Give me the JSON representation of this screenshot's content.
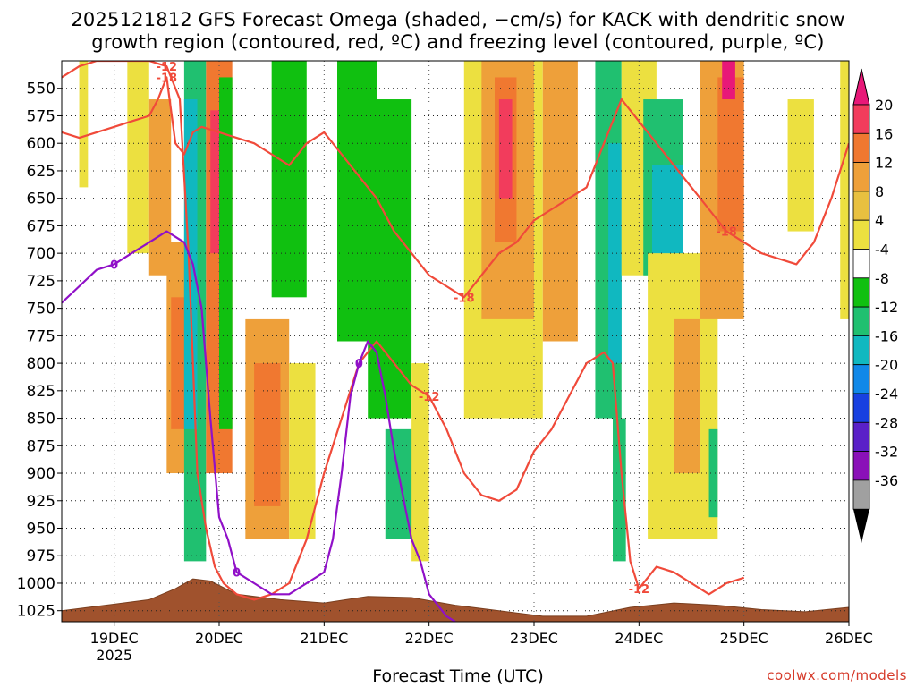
{
  "title": {
    "line1": "2025121812 GFS Forecast Omega (shaded, −cm/s) for KACK with dendritic snow",
    "line2": "growth region (contoured, red, ºC) and freezing level (contoured, purple, ºC)"
  },
  "credit": "coolwx.com/models",
  "chart_data": {
    "type": "time-height cross-section",
    "xlabel": "Forecast Time (UTC)",
    "x_ticks": [
      {
        "label": "19DEC",
        "sublabel": "2025",
        "hour": 12
      },
      {
        "label": "20DEC",
        "hour": 36
      },
      {
        "label": "21DEC",
        "hour": 60
      },
      {
        "label": "22DEC",
        "hour": 84
      },
      {
        "label": "23DEC",
        "hour": 108
      },
      {
        "label": "24DEC",
        "hour": 132
      },
      {
        "label": "25DEC",
        "hour": 156
      },
      {
        "label": "26DEC",
        "hour": 180
      }
    ],
    "x_range_hours": [
      0,
      180
    ],
    "y_levels_hpa": [
      550,
      575,
      600,
      625,
      650,
      675,
      700,
      725,
      750,
      775,
      800,
      825,
      850,
      875,
      900,
      925,
      950,
      975,
      1000,
      1025
    ],
    "y_range_hpa": [
      525,
      1035
    ],
    "y_labels": [
      "550",
      "575",
      "600",
      "625",
      "650",
      "675",
      "700",
      "725",
      "750",
      "775",
      "800",
      "825",
      "850",
      "875",
      "900",
      "925",
      "950",
      "975",
      "1000",
      "1025"
    ],
    "colorbar": {
      "labels": [
        "20",
        "16",
        "12",
        "8",
        "4",
        "-4",
        "-8",
        "-12",
        "-16",
        "-20",
        "-24",
        "-28",
        "-32",
        "-36"
      ],
      "colors": [
        "#f23c5c",
        "#f07830",
        "#eea03a",
        "#e8c040",
        "#ece040",
        "#ffffff",
        "#10c010",
        "#20c070",
        "#10b8c0",
        "#1088e8",
        "#1840e0",
        "#5a20c8",
        "#8a10b8",
        "#a0a0a0"
      ],
      "top_arrow_color": "#e81878",
      "bottom_arrow_color": "#000000"
    },
    "omega_regions": [
      {
        "x": [
          4,
          6
        ],
        "p": [
          525,
          640
        ],
        "v": 5
      },
      {
        "x": [
          15,
          20
        ],
        "p": [
          525,
          700
        ],
        "v": 6
      },
      {
        "x": [
          20,
          25
        ],
        "p": [
          560,
          720
        ],
        "v": 10
      },
      {
        "x": [
          24,
          30
        ],
        "p": [
          690,
          900
        ],
        "v": 8
      },
      {
        "x": [
          25,
          29
        ],
        "p": [
          740,
          860
        ],
        "v": 14
      },
      {
        "x": [
          28,
          33
        ],
        "p": [
          525,
          980
        ],
        "v": -10
      },
      {
        "x": [
          28,
          31
        ],
        "p": [
          560,
          860
        ],
        "v": -14
      },
      {
        "x": [
          33,
          39
        ],
        "p": [
          525,
          900
        ],
        "v": 12
      },
      {
        "x": [
          34,
          37
        ],
        "p": [
          570,
          700
        ],
        "v": 18
      },
      {
        "x": [
          36,
          39
        ],
        "p": [
          540,
          860
        ],
        "v": -6
      },
      {
        "x": [
          42,
          52
        ],
        "p": [
          760,
          960
        ],
        "v": 8
      },
      {
        "x": [
          44,
          50
        ],
        "p": [
          800,
          930
        ],
        "v": 13
      },
      {
        "x": [
          48,
          56
        ],
        "p": [
          525,
          740
        ],
        "v": -7
      },
      {
        "x": [
          52,
          58
        ],
        "p": [
          800,
          960
        ],
        "v": 5
      },
      {
        "x": [
          63,
          72
        ],
        "p": [
          525,
          780
        ],
        "v": -7
      },
      {
        "x": [
          70,
          80
        ],
        "p": [
          560,
          850
        ],
        "v": -6
      },
      {
        "x": [
          74,
          82
        ],
        "p": [
          860,
          960
        ],
        "v": -8
      },
      {
        "x": [
          80,
          84
        ],
        "p": [
          800,
          980
        ],
        "v": 5
      },
      {
        "x": [
          92,
          110
        ],
        "p": [
          525,
          850
        ],
        "v": 6
      },
      {
        "x": [
          96,
          108
        ],
        "p": [
          525,
          760
        ],
        "v": 10
      },
      {
        "x": [
          99,
          104
        ],
        "p": [
          540,
          690
        ],
        "v": 15
      },
      {
        "x": [
          100,
          103
        ],
        "p": [
          560,
          650
        ],
        "v": 19
      },
      {
        "x": [
          110,
          118
        ],
        "p": [
          525,
          780
        ],
        "v": 8
      },
      {
        "x": [
          122,
          128
        ],
        "p": [
          525,
          850
        ],
        "v": -8
      },
      {
        "x": [
          125,
          128
        ],
        "p": [
          600,
          800
        ],
        "v": -13
      },
      {
        "x": [
          126,
          129
        ],
        "p": [
          850,
          980
        ],
        "v": -9
      },
      {
        "x": [
          128,
          136
        ],
        "p": [
          525,
          720
        ],
        "v": 5
      },
      {
        "x": [
          133,
          142
        ],
        "p": [
          560,
          720
        ],
        "v": -9
      },
      {
        "x": [
          135,
          142
        ],
        "p": [
          620,
          780
        ],
        "v": -13
      },
      {
        "x": [
          134,
          150
        ],
        "p": [
          700,
          960
        ],
        "v": 6
      },
      {
        "x": [
          140,
          146
        ],
        "p": [
          760,
          900
        ],
        "v": 10
      },
      {
        "x": [
          146,
          156
        ],
        "p": [
          525,
          760
        ],
        "v": 8
      },
      {
        "x": [
          150,
          156
        ],
        "p": [
          540,
          680
        ],
        "v": 12
      },
      {
        "x": [
          151,
          154
        ],
        "p": [
          525,
          560
        ],
        "v": 20
      },
      {
        "x": [
          148,
          150
        ],
        "p": [
          860,
          940
        ],
        "v": -9
      },
      {
        "x": [
          166,
          172
        ],
        "p": [
          560,
          680
        ],
        "v": 5
      },
      {
        "x": [
          178,
          180
        ],
        "p": [
          525,
          760
        ],
        "v": 5
      }
    ],
    "dgz_isotherms": [
      {
        "label": "-12",
        "hours": [
          0,
          4,
          8,
          12,
          16,
          20,
          24,
          27,
          29,
          31,
          33,
          35,
          37,
          40,
          44,
          48,
          52,
          56,
          60,
          64,
          68,
          72,
          76,
          80,
          84,
          88,
          92,
          96,
          100,
          104,
          108,
          112,
          116,
          120,
          124,
          126,
          128,
          130,
          132,
          136,
          140,
          144,
          148,
          152,
          156
        ],
        "p": [
          540,
          530,
          525,
          525,
          525,
          525,
          530,
          560,
          700,
          900,
          950,
          985,
          1000,
          1010,
          1015,
          1010,
          1000,
          960,
          900,
          850,
          800,
          780,
          800,
          820,
          830,
          860,
          900,
          920,
          925,
          915,
          880,
          860,
          830,
          800,
          790,
          800,
          900,
          980,
          1005,
          985,
          990,
          1000,
          1010,
          1000,
          995
        ]
      },
      {
        "label": "-18",
        "hours": [
          0,
          4,
          8,
          12,
          16,
          20,
          22,
          24,
          26,
          28,
          30,
          32,
          36,
          40,
          44,
          48,
          52,
          56,
          60,
          64,
          68,
          72,
          76,
          80,
          84,
          88,
          92,
          96,
          100,
          104,
          108,
          112,
          116,
          120,
          124,
          128,
          132,
          136,
          140,
          144,
          148,
          152,
          156,
          160,
          164,
          168,
          172,
          176,
          180
        ],
        "p": [
          590,
          595,
          590,
          585,
          580,
          575,
          560,
          540,
          600,
          610,
          590,
          585,
          590,
          595,
          600,
          610,
          620,
          600,
          590,
          610,
          630,
          650,
          680,
          700,
          720,
          730,
          740,
          720,
          700,
          690,
          670,
          660,
          650,
          640,
          600,
          560,
          580,
          600,
          620,
          640,
          660,
          680,
          690,
          700,
          705,
          710,
          690,
          650,
          600
        ]
      }
    ],
    "freezing_level": {
      "label": "0",
      "hours": [
        0,
        4,
        8,
        12,
        16,
        20,
        24,
        28,
        30,
        32,
        34,
        36,
        38,
        40,
        44,
        48,
        52,
        56,
        60,
        62,
        64,
        66,
        68,
        70,
        72,
        74,
        76,
        78,
        80,
        82,
        84,
        86,
        88,
        90
      ],
      "p": [
        745,
        730,
        715,
        710,
        700,
        690,
        680,
        690,
        710,
        750,
        850,
        940,
        960,
        990,
        1000,
        1010,
        1010,
        1000,
        990,
        960,
        900,
        830,
        800,
        780,
        790,
        830,
        880,
        920,
        960,
        980,
        1010,
        1020,
        1030,
        1035
      ]
    },
    "orography_hpa": {
      "hours": [
        0,
        10,
        20,
        26,
        30,
        34,
        40,
        50,
        60,
        70,
        80,
        90,
        100,
        110,
        120,
        130,
        140,
        150,
        160,
        170,
        180
      ],
      "p": [
        1025,
        1020,
        1015,
        1005,
        996,
        998,
        1010,
        1015,
        1018,
        1012,
        1013,
        1020,
        1025,
        1030,
        1030,
        1022,
        1018,
        1020,
        1024,
        1026,
        1022
      ]
    }
  }
}
